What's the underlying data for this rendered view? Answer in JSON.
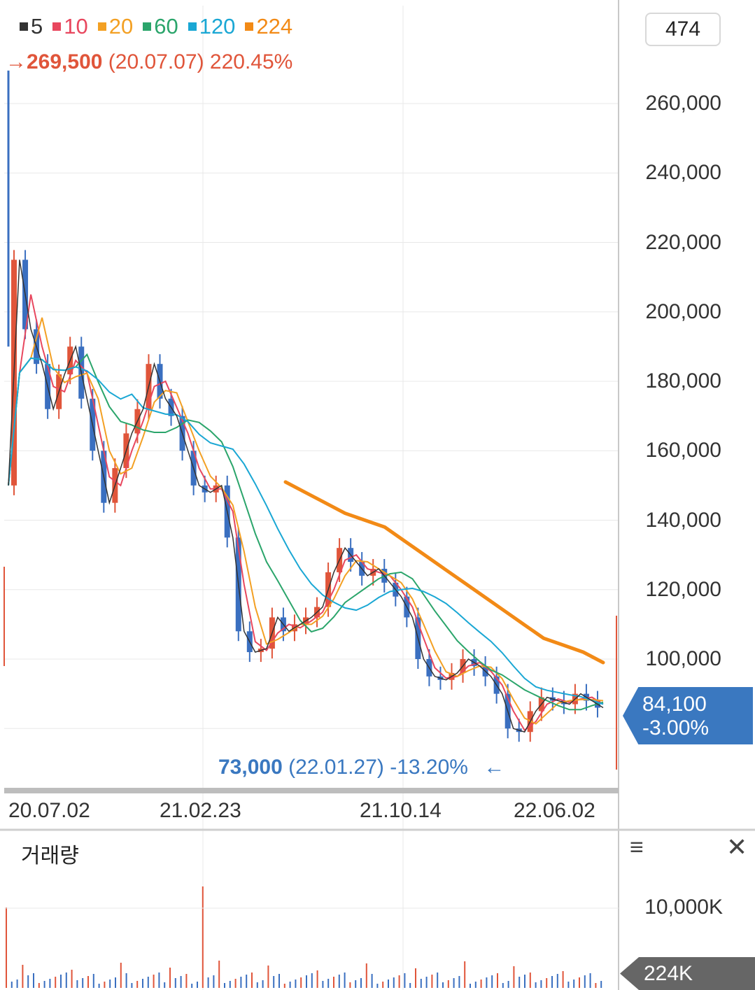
{
  "legend": [
    {
      "label": "5",
      "color": "#333333"
    },
    {
      "label": "10",
      "color": "#e8475e"
    },
    {
      "label": "20",
      "color": "#f3a023"
    },
    {
      "label": "60",
      "color": "#2ba56b"
    },
    {
      "label": "120",
      "color": "#1aa7d4"
    },
    {
      "label": "224",
      "color": "#f28a16"
    }
  ],
  "high_label": {
    "arrow": "→",
    "value": "269,500",
    "date": "(20.07.07)",
    "change": "220.45%"
  },
  "low_label": {
    "value": "73,000",
    "date": "(22.01.27)",
    "change": "-13.20%",
    "arrow": "←"
  },
  "count_box": "474",
  "current_price": {
    "value": "84,100",
    "change": "-3.00%"
  },
  "volume": {
    "title": "거래량",
    "tick": "10,000K",
    "current": "224K",
    "menu_icon": "≡",
    "close_icon": "✕"
  },
  "colors": {
    "up": "#e0553a",
    "down": "#3a6fc0",
    "ma224": "#f28a16",
    "grid": "#e8e8e8",
    "price_tag": "#3a78c0"
  },
  "chart_data": {
    "type": "line",
    "title": "",
    "x_tick_labels": [
      "20.07.02",
      "21.02.23",
      "21.10.14",
      "22.06.02"
    ],
    "y_tick_labels": [
      "260,000",
      "240,000",
      "220,000",
      "200,000",
      "180,000",
      "160,000",
      "140,000",
      "120,000",
      "100,000"
    ],
    "ylim": [
      75000,
      275000
    ],
    "grid": true,
    "series": [
      {
        "name": "5",
        "values": [
          150000,
          215000,
          195000,
          185000,
          172000,
          182000,
          190000,
          175000,
          160000,
          145000,
          155000,
          165000,
          172000,
          185000,
          175000,
          170000,
          160000,
          150000,
          148000,
          150000,
          135000,
          108000,
          102000,
          103000,
          112000,
          108000,
          110000,
          112000,
          115000,
          125000,
          132000,
          128000,
          124000,
          126000,
          122000,
          118000,
          112000,
          100000,
          95000,
          94000,
          96000,
          100000,
          98000,
          95000,
          90000,
          80000,
          79000,
          85000,
          89000,
          88000,
          87000,
          90000,
          88000,
          86000
        ]
      },
      {
        "name": "224",
        "values": [
          151000,
          148000,
          145000,
          142000,
          140000,
          138000,
          134000,
          130000,
          126000,
          122000,
          118000,
          114000,
          110000,
          106000,
          104000,
          102000,
          99000
        ]
      }
    ],
    "annotations": [
      {
        "label": "high",
        "value": 269500,
        "date": "20.07.07",
        "change": "220.45%"
      },
      {
        "label": "low",
        "value": 73000,
        "date": "22.01.27",
        "change": "-13.20%"
      },
      {
        "label": "last",
        "value": 84100,
        "change": "-3.00%"
      }
    ]
  }
}
